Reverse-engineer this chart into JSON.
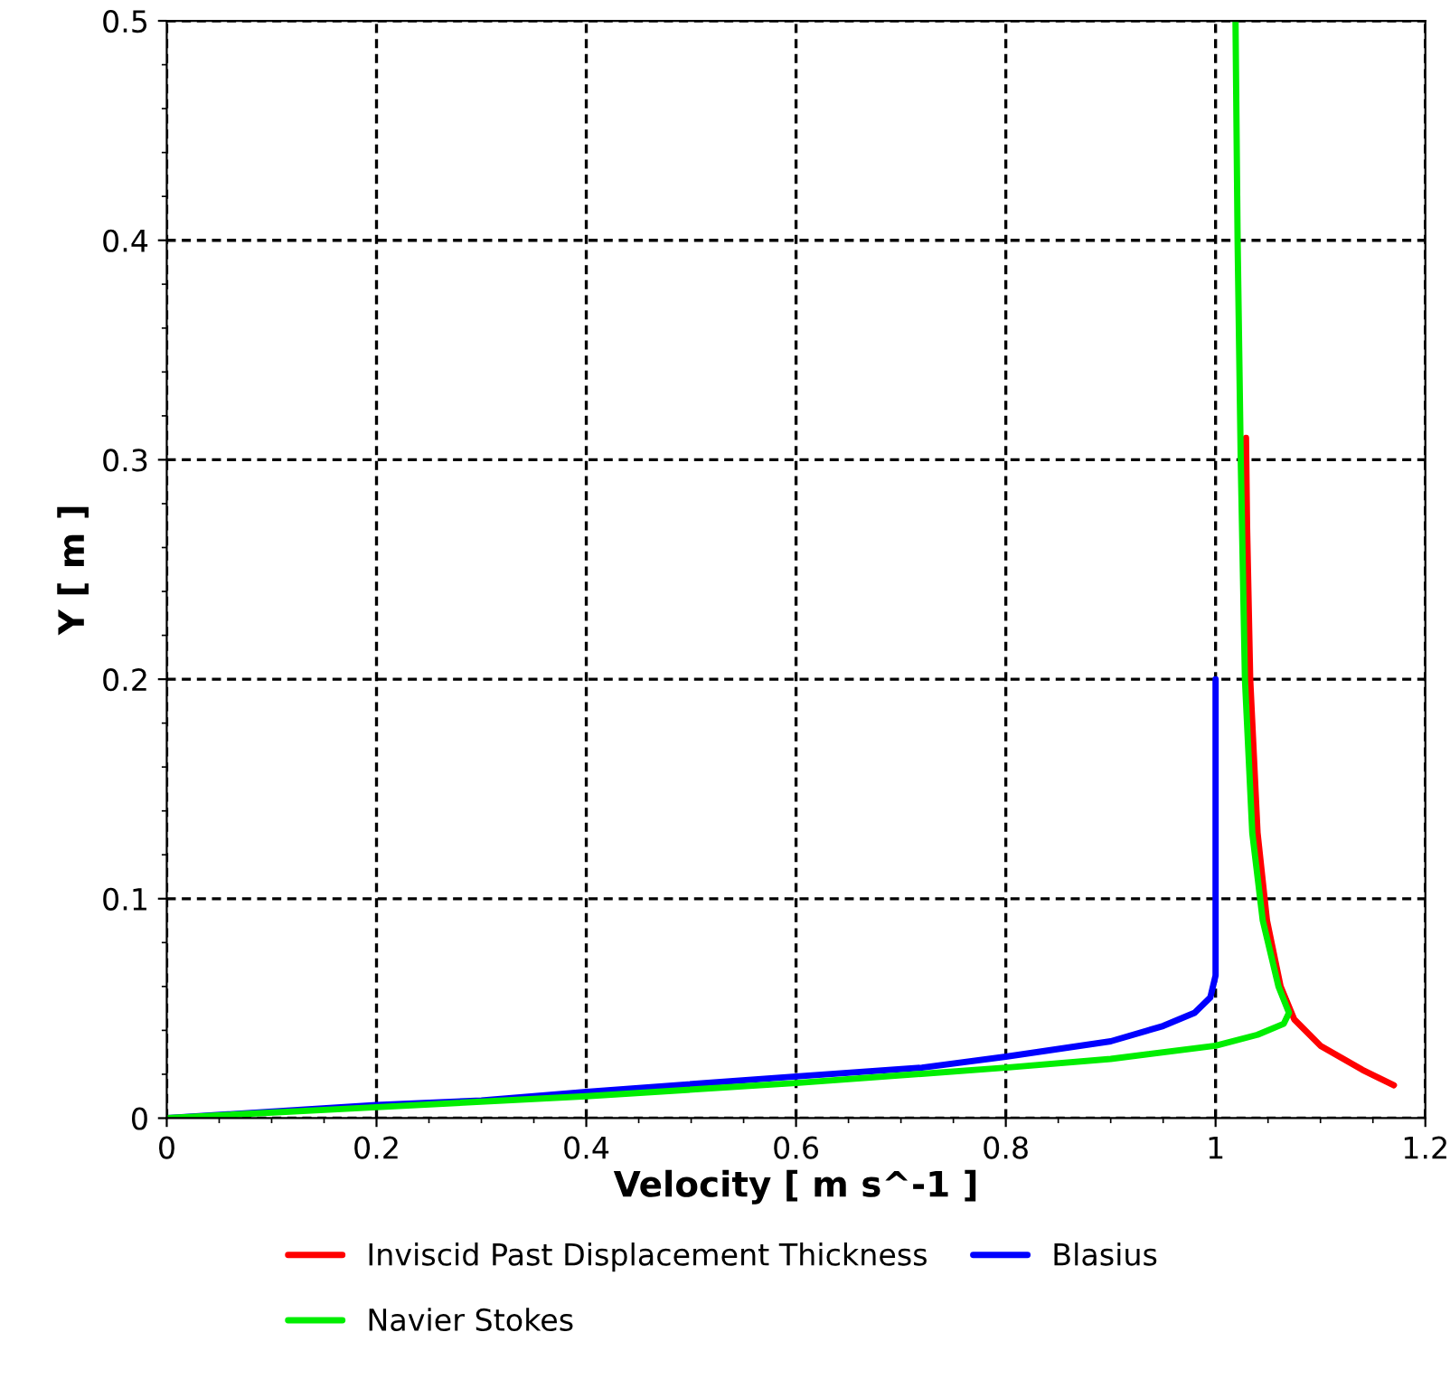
{
  "chart_data": {
    "type": "line",
    "xlabel": "Velocity [ m s^-1 ]",
    "ylabel": "Y [ m ]",
    "xlim": [
      0,
      1.2
    ],
    "xticks": [
      0,
      0.2,
      0.4,
      0.6,
      0.8,
      1,
      1.2
    ],
    "ylim": [
      0,
      0.5
    ],
    "yticks": [
      0,
      0.1,
      0.2,
      0.3,
      0.4,
      0.5
    ],
    "grid": true,
    "legend": "bottom",
    "line_style": "solid",
    "marker": "none",
    "series": [
      {
        "name": "Inviscid Past Displacement Thickness",
        "color": "#ff0000",
        "x": [
          1.17,
          1.14,
          1.1,
          1.075,
          1.062,
          1.049,
          1.04,
          1.033,
          1.03,
          1.029
        ],
        "values": [
          0.015,
          0.022,
          0.033,
          0.045,
          0.06,
          0.09,
          0.13,
          0.2,
          0.27,
          0.31
        ]
      },
      {
        "name": "Blasius",
        "color": "#0000ff",
        "x": [
          0,
          0.2,
          0.3,
          0.4,
          0.6,
          0.72,
          0.8,
          0.9,
          0.95,
          0.98,
          0.995,
          1.0,
          1.0
        ],
        "values": [
          0,
          0.006,
          0.008,
          0.012,
          0.019,
          0.023,
          0.028,
          0.035,
          0.042,
          0.048,
          0.055,
          0.065,
          0.2
        ]
      },
      {
        "name": "Navier Stokes",
        "color": "#00ee00",
        "x": [
          0,
          0.2,
          0.4,
          0.6,
          0.8,
          0.9,
          1.0,
          1.04,
          1.065,
          1.07,
          1.06,
          1.045,
          1.035,
          1.028,
          1.024,
          1.021,
          1.019
        ],
        "values": [
          0,
          0.005,
          0.01,
          0.016,
          0.023,
          0.027,
          0.033,
          0.038,
          0.043,
          0.048,
          0.06,
          0.09,
          0.13,
          0.2,
          0.3,
          0.4,
          0.5
        ]
      }
    ]
  }
}
